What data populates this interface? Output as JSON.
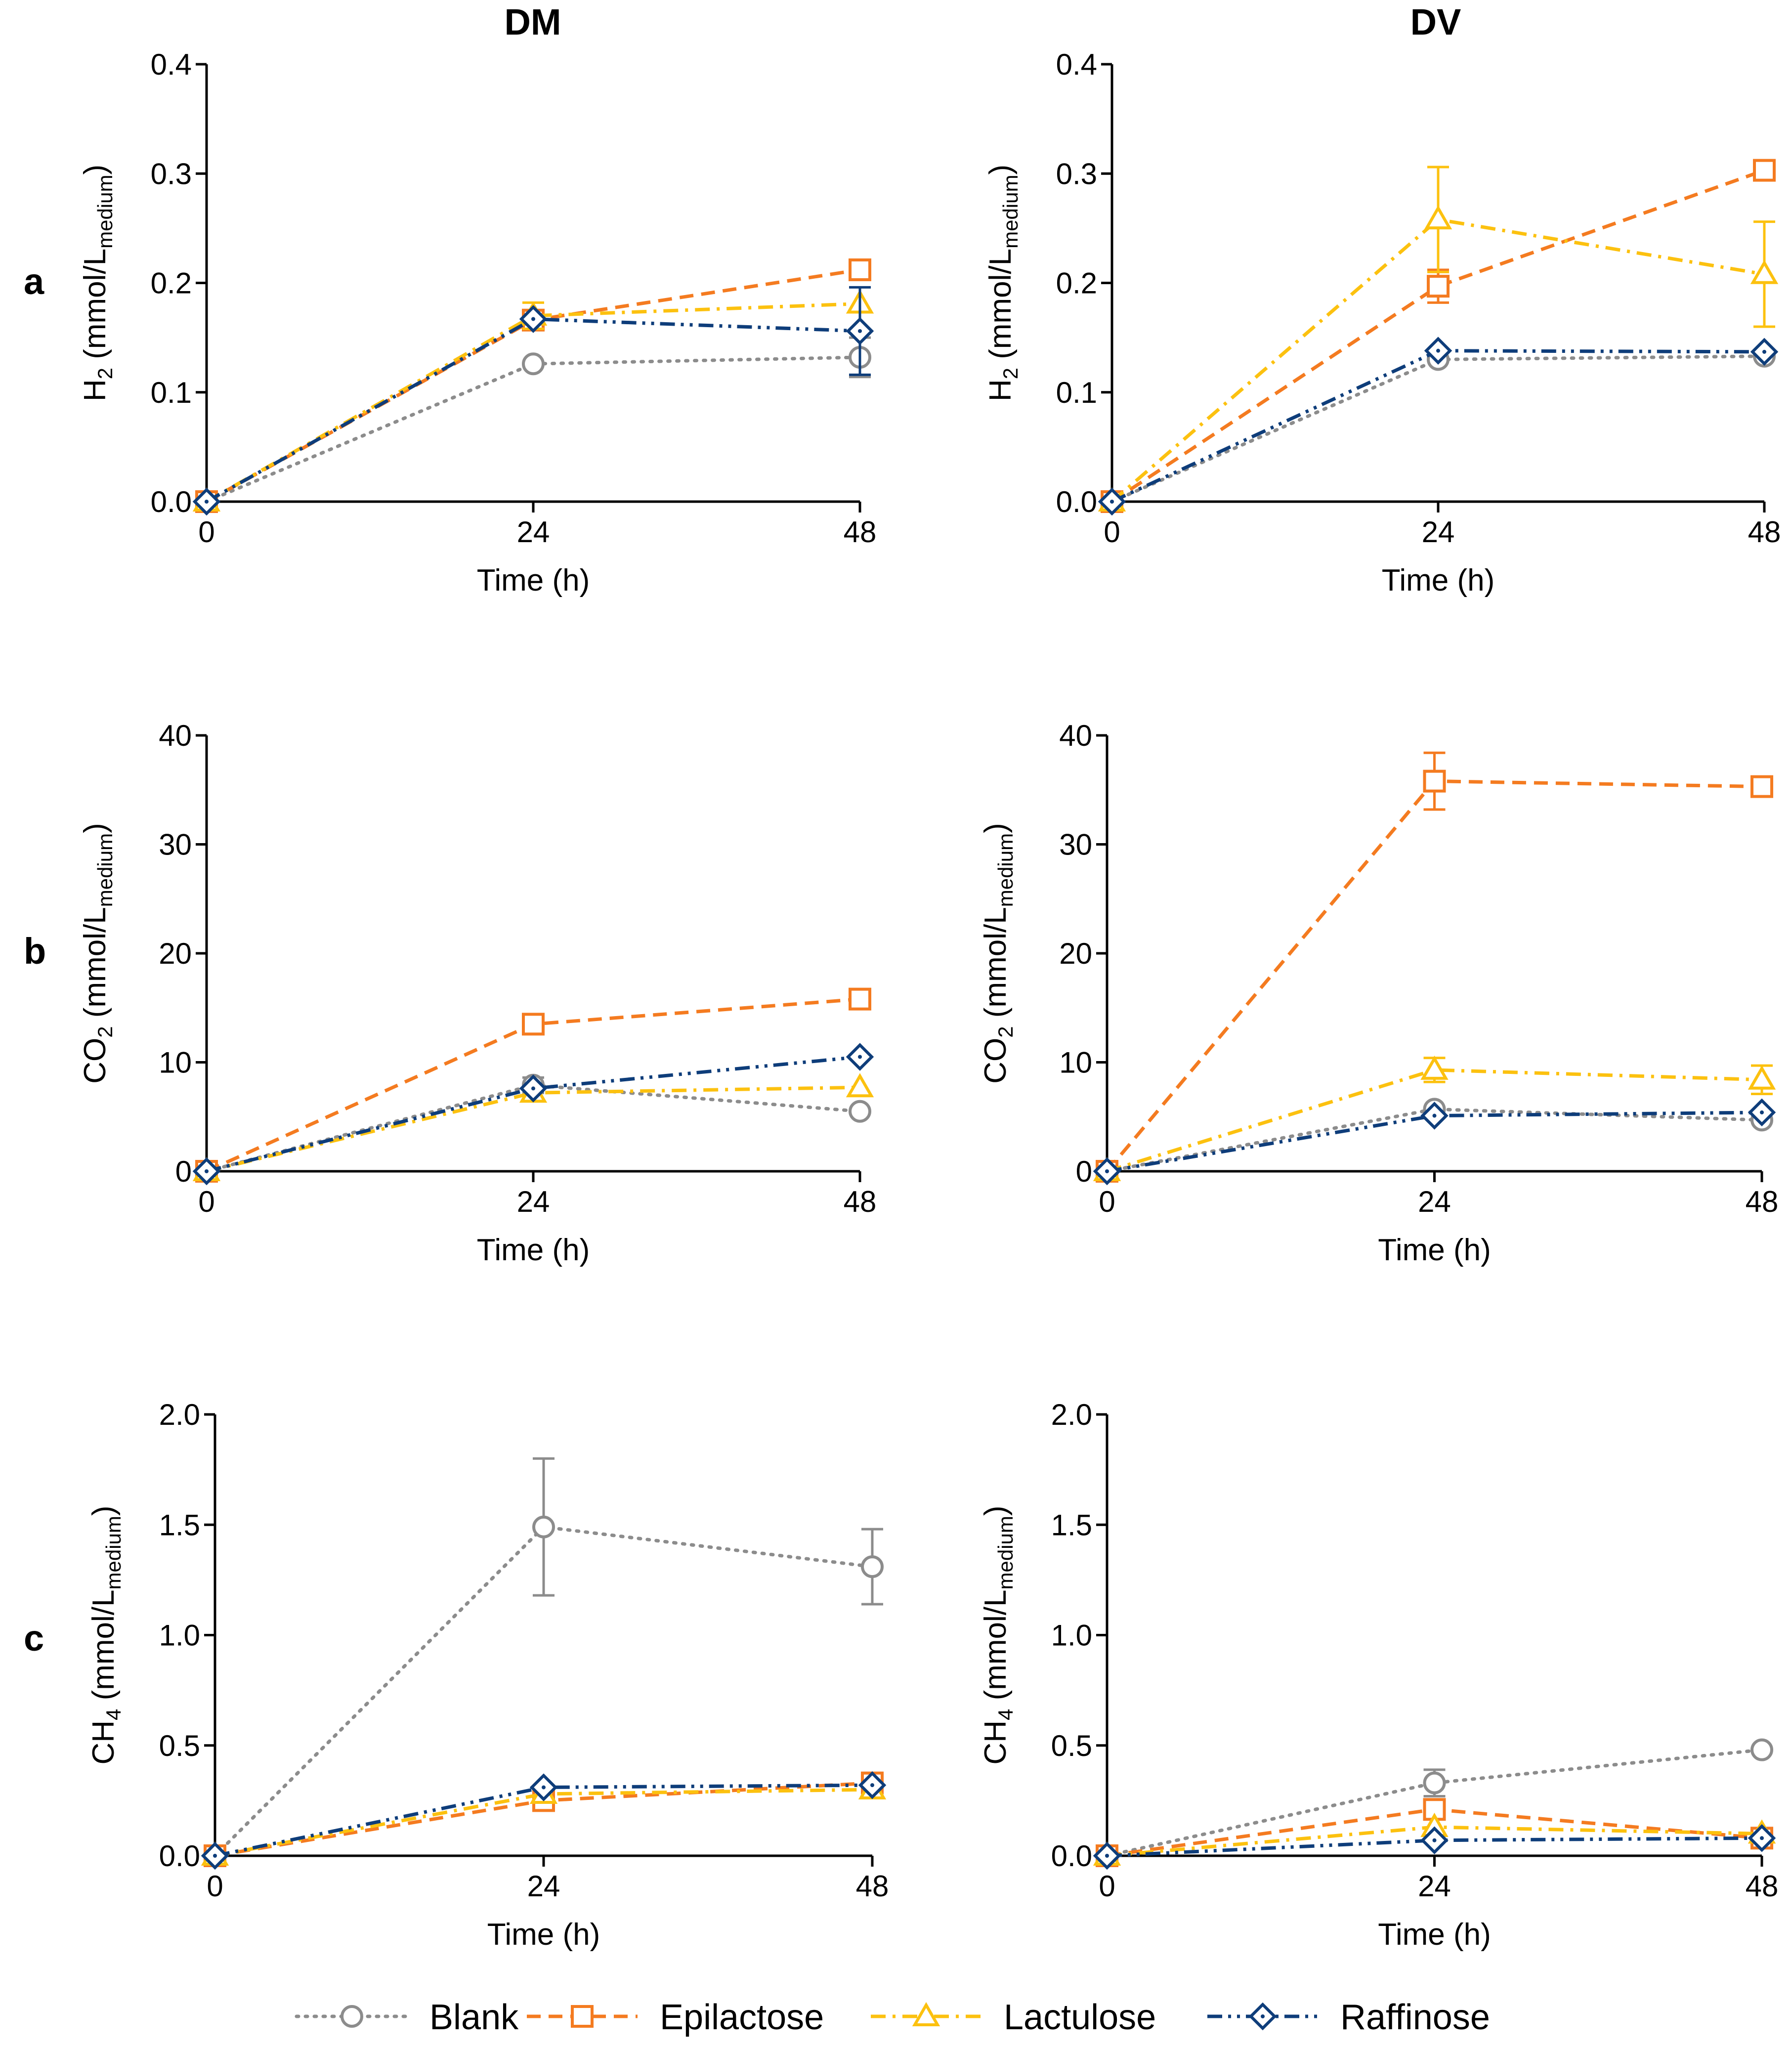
{
  "columns": [
    "DM",
    "DV"
  ],
  "legend": [
    {
      "name": "Blank",
      "color": "#8c8c8c",
      "marker": "circle",
      "dash": "dotted"
    },
    {
      "name": "Epilactose",
      "color": "#f47b20",
      "marker": "square",
      "dash": "dashed"
    },
    {
      "name": "Lactulose",
      "color": "#fcc10f",
      "marker": "triangle",
      "dash": "dashdot"
    },
    {
      "name": "Raffinose",
      "color": "#0e3d7a",
      "marker": "diamond",
      "dash": "dashdotdot"
    }
  ],
  "chart_data": [
    {
      "type": "line",
      "panel": "a",
      "column": "DM",
      "xlabel": "Time (h)",
      "ylabel_main": "H",
      "ylabel_sub": "2",
      "ylabel_rest": " (mmol/L",
      "ylabel_sub2": "medium",
      "ylabel_end": ")",
      "x": [
        0,
        24,
        48
      ],
      "xticks": [
        "0",
        "24",
        "48"
      ],
      "ylim": [
        0,
        0.4
      ],
      "yticks": [
        "0.0",
        "0.1",
        "0.2",
        "0.3",
        "0.4"
      ],
      "series": [
        {
          "name": "Blank",
          "values": [
            0,
            0.126,
            0.132
          ],
          "errors": [
            0,
            0,
            0.018
          ]
        },
        {
          "name": "Epilactose",
          "values": [
            0,
            0.166,
            0.212
          ],
          "errors": [
            0,
            0,
            0
          ]
        },
        {
          "name": "Lactulose",
          "values": [
            0,
            0.17,
            0.181
          ],
          "errors": [
            0,
            0.012,
            0
          ]
        },
        {
          "name": "Raffinose",
          "values": [
            0,
            0.167,
            0.156
          ],
          "errors": [
            0,
            0,
            0.04
          ]
        }
      ]
    },
    {
      "type": "line",
      "panel": "a",
      "column": "DV",
      "xlabel": "Time (h)",
      "ylabel_main": "H",
      "ylabel_sub": "2",
      "ylabel_rest": " (mmol/L",
      "ylabel_sub2": "medium",
      "ylabel_end": ")",
      "x": [
        0,
        24,
        48
      ],
      "xticks": [
        "0",
        "24",
        "48"
      ],
      "ylim": [
        0,
        0.4
      ],
      "yticks": [
        "0.0",
        "0.1",
        "0.2",
        "0.3",
        "0.4"
      ],
      "series": [
        {
          "name": "Blank",
          "values": [
            0,
            0.13,
            0.133
          ],
          "errors": [
            0,
            0,
            0
          ]
        },
        {
          "name": "Epilactose",
          "values": [
            0,
            0.197,
            0.303
          ],
          "errors": [
            0,
            0.015,
            0
          ]
        },
        {
          "name": "Lactulose",
          "values": [
            0,
            0.258,
            0.208
          ],
          "errors": [
            0,
            0.048,
            0.048
          ]
        },
        {
          "name": "Raffinose",
          "values": [
            0,
            0.138,
            0.137
          ],
          "errors": [
            0,
            0,
            0
          ]
        }
      ]
    },
    {
      "type": "line",
      "panel": "b",
      "column": "DM",
      "xlabel": "Time (h)",
      "ylabel_main": "CO",
      "ylabel_sub": "2",
      "ylabel_rest": " (mmol/L",
      "ylabel_sub2": "medium",
      "ylabel_end": ")",
      "x": [
        0,
        24,
        48
      ],
      "xticks": [
        "0",
        "24",
        "48"
      ],
      "ylim": [
        0,
        40
      ],
      "yticks": [
        "0",
        "10",
        "20",
        "30",
        "40"
      ],
      "series": [
        {
          "name": "Blank",
          "values": [
            0,
            7.9,
            5.5
          ],
          "errors": [
            0,
            0.7,
            0
          ]
        },
        {
          "name": "Epilactose",
          "values": [
            0,
            13.5,
            15.8
          ],
          "errors": [
            0,
            0,
            0
          ]
        },
        {
          "name": "Lactulose",
          "values": [
            0,
            7.2,
            7.7
          ],
          "errors": [
            0,
            0,
            0
          ]
        },
        {
          "name": "Raffinose",
          "values": [
            0,
            7.6,
            10.5
          ],
          "errors": [
            0,
            0,
            0
          ]
        }
      ]
    },
    {
      "type": "line",
      "panel": "b",
      "column": "DV",
      "xlabel": "Time (h)",
      "ylabel_main": "CO",
      "ylabel_sub": "2",
      "ylabel_rest": " (mmol/L",
      "ylabel_sub2": "medium",
      "ylabel_end": ")",
      "x": [
        0,
        24,
        48
      ],
      "xticks": [
        "0",
        "24",
        "48"
      ],
      "ylim": [
        0,
        40
      ],
      "yticks": [
        "0",
        "10",
        "20",
        "30",
        "40"
      ],
      "series": [
        {
          "name": "Blank",
          "values": [
            0,
            5.7,
            4.7
          ],
          "errors": [
            0,
            0,
            0
          ]
        },
        {
          "name": "Epilactose",
          "values": [
            0,
            35.8,
            35.3
          ],
          "errors": [
            0,
            2.6,
            0
          ]
        },
        {
          "name": "Lactulose",
          "values": [
            0,
            9.3,
            8.4
          ],
          "errors": [
            0,
            1.1,
            1.3
          ]
        },
        {
          "name": "Raffinose",
          "values": [
            0,
            5.1,
            5.4
          ],
          "errors": [
            0,
            0,
            0
          ]
        }
      ]
    },
    {
      "type": "line",
      "panel": "c",
      "column": "DM",
      "xlabel": "Time (h)",
      "ylabel_main": "CH",
      "ylabel_sub": "4",
      "ylabel_rest": " (mmol/L",
      "ylabel_sub2": "medium",
      "ylabel_end": ")",
      "x": [
        0,
        24,
        48
      ],
      "xticks": [
        "0",
        "24",
        "48"
      ],
      "ylim": [
        0,
        2.0
      ],
      "yticks": [
        "0.0",
        "0.5",
        "1.0",
        "1.5",
        "2.0"
      ],
      "series": [
        {
          "name": "Blank",
          "values": [
            0,
            1.49,
            1.31
          ],
          "errors": [
            0,
            0.31,
            0.17
          ]
        },
        {
          "name": "Epilactose",
          "values": [
            0,
            0.25,
            0.33
          ],
          "errors": [
            0,
            0,
            0
          ]
        },
        {
          "name": "Lactulose",
          "values": [
            0,
            0.28,
            0.3
          ],
          "errors": [
            0,
            0,
            0
          ]
        },
        {
          "name": "Raffinose",
          "values": [
            0,
            0.31,
            0.32
          ],
          "errors": [
            0,
            0,
            0
          ]
        }
      ]
    },
    {
      "type": "line",
      "panel": "c",
      "column": "DV",
      "xlabel": "Time (h)",
      "ylabel_main": "CH",
      "ylabel_sub": "4",
      "ylabel_rest": " (mmol/L",
      "ylabel_sub2": "medium",
      "ylabel_end": ")",
      "x": [
        0,
        24,
        48
      ],
      "xticks": [
        "0",
        "24",
        "48"
      ],
      "ylim": [
        0,
        2.0
      ],
      "yticks": [
        "0.0",
        "0.5",
        "1.0",
        "1.5",
        "2.0"
      ],
      "series": [
        {
          "name": "Blank",
          "values": [
            0,
            0.33,
            0.48
          ],
          "errors": [
            0,
            0.06,
            0
          ]
        },
        {
          "name": "Epilactose",
          "values": [
            0,
            0.21,
            0.08
          ],
          "errors": [
            0,
            0,
            0
          ]
        },
        {
          "name": "Lactulose",
          "values": [
            0,
            0.13,
            0.1
          ],
          "errors": [
            0,
            0,
            0
          ]
        },
        {
          "name": "Raffinose",
          "values": [
            0,
            0.07,
            0.08
          ],
          "errors": [
            0,
            0,
            0
          ]
        }
      ]
    }
  ]
}
